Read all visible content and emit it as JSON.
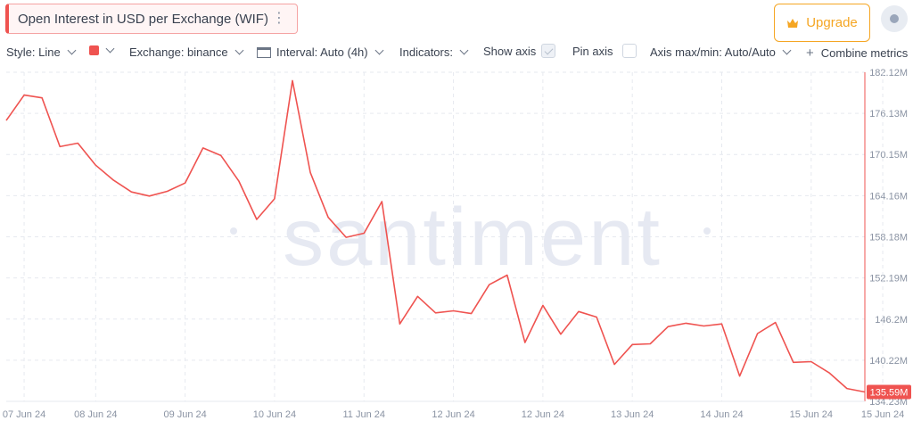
{
  "header": {
    "title": "Open Interest in USD per Exchange (WIF)",
    "menu_icon": "kebab-menu-icon",
    "upgrade_label": "Upgrade",
    "upgrade_icon": "crown-icon",
    "accent": "#f5a623",
    "circle_icon": "circle-dot-icon"
  },
  "toolbar": {
    "style_label": "Style: Line",
    "exchange_label": "Exchange: binance",
    "interval_label": "Interval: Auto (4h)",
    "indicators_label": "Indicators:",
    "show_axis_label": "Show axis",
    "show_axis_checked": true,
    "pin_axis_label": "Pin axis",
    "pin_axis_checked": false,
    "axis_label": "Axis max/min: Auto/Auto",
    "combine_label": "Combine metrics",
    "line_color": "#ef5350"
  },
  "chart_data": {
    "type": "line",
    "title": "Open Interest in USD per Exchange (WIF)",
    "watermark": "santiment",
    "series_color": "#ef5350",
    "y_unit": "USD (millions)",
    "ylim": [
      134.23,
      182.12
    ],
    "y_ticks": [
      "182.12M",
      "176.13M",
      "170.15M",
      "164.16M",
      "158.18M",
      "152.19M",
      "146.2M",
      "140.22M",
      "134.23M"
    ],
    "y_tick_values": [
      182.12,
      176.13,
      170.15,
      164.16,
      158.18,
      152.19,
      146.2,
      140.22,
      134.23
    ],
    "x_ticks": [
      "07 Jun 24",
      "08 Jun 24",
      "09 Jun 24",
      "10 Jun 24",
      "11 Jun 24",
      "12 Jun 24",
      "12 Jun 24",
      "13 Jun 24",
      "14 Jun 24",
      "15 Jun 24",
      "15 Jun 24"
    ],
    "x_tick_index": [
      1,
      5,
      10,
      15,
      20,
      25,
      30,
      35,
      40,
      45,
      49
    ],
    "grid": true,
    "last_value_label": "135.59M",
    "values": [
      175.1,
      178.8,
      178.4,
      171.3,
      171.8,
      168.6,
      166.4,
      164.7,
      164.1,
      164.8,
      166.0,
      171.1,
      170.0,
      166.3,
      160.7,
      163.7,
      180.9,
      167.5,
      161.0,
      158.1,
      158.7,
      163.3,
      145.5,
      149.5,
      147.1,
      147.4,
      147.0,
      151.2,
      152.6,
      142.8,
      148.2,
      144.0,
      147.3,
      146.5,
      139.6,
      142.5,
      142.6,
      145.1,
      145.6,
      145.2,
      145.5,
      137.9,
      144.1,
      145.7,
      139.9,
      140.0,
      138.4,
      136.1,
      135.59
    ]
  }
}
